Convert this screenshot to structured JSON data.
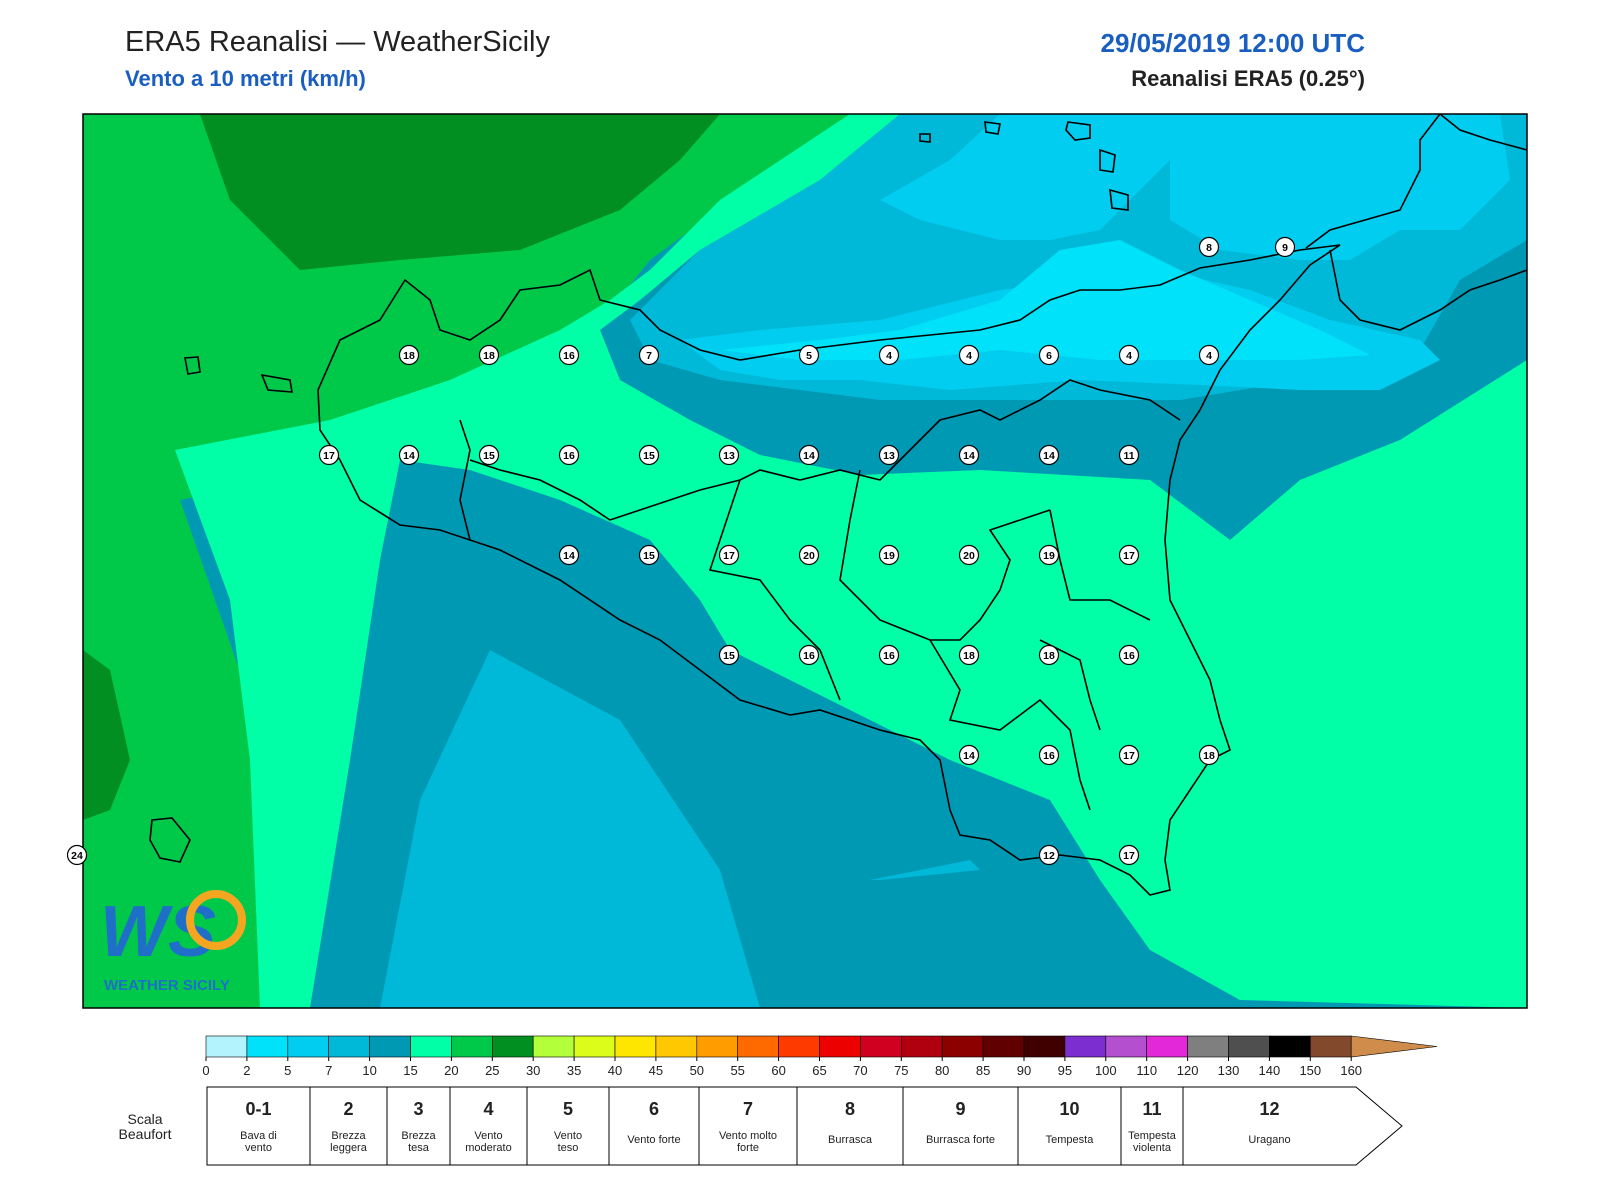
{
  "header": {
    "title": "ERA5 Reanalisi — WeatherSicily",
    "subtitle": "Vento a 10 metri (km/h)",
    "datetime": "29/05/2019 12:00 UTC",
    "model": "Reanalisi ERA5 (0.25°)"
  },
  "stations": [
    {
      "v": "8",
      "lon": 15.26,
      "lat": 38.27
    },
    {
      "v": "9",
      "lon": 15.45,
      "lat": 38.27
    },
    {
      "v": "18",
      "lon": 13.26,
      "lat": 38.0
    },
    {
      "v": "18",
      "lon": 13.46,
      "lat": 38.0
    },
    {
      "v": "16",
      "lon": 13.66,
      "lat": 38.0
    },
    {
      "v": "7",
      "lon": 13.86,
      "lat": 38.0
    },
    {
      "v": "5",
      "lon": 14.26,
      "lat": 38.0
    },
    {
      "v": "4",
      "lon": 14.46,
      "lat": 38.0
    },
    {
      "v": "4",
      "lon": 14.66,
      "lat": 38.0
    },
    {
      "v": "6",
      "lon": 14.86,
      "lat": 38.0
    },
    {
      "v": "4",
      "lon": 15.06,
      "lat": 38.0
    },
    {
      "v": "4",
      "lon": 15.26,
      "lat": 38.0
    },
    {
      "v": "17",
      "lon": 13.06,
      "lat": 37.75
    },
    {
      "v": "14",
      "lon": 13.26,
      "lat": 37.75
    },
    {
      "v": "15",
      "lon": 13.46,
      "lat": 37.75
    },
    {
      "v": "16",
      "lon": 13.66,
      "lat": 37.75
    },
    {
      "v": "15",
      "lon": 13.86,
      "lat": 37.75
    },
    {
      "v": "13",
      "lon": 14.06,
      "lat": 37.75
    },
    {
      "v": "14",
      "lon": 14.26,
      "lat": 37.75
    },
    {
      "v": "13",
      "lon": 14.46,
      "lat": 37.75
    },
    {
      "v": "14",
      "lon": 14.66,
      "lat": 37.75
    },
    {
      "v": "14",
      "lon": 14.86,
      "lat": 37.75
    },
    {
      "v": "11",
      "lon": 15.06,
      "lat": 37.75
    },
    {
      "v": "14",
      "lon": 13.66,
      "lat": 37.5
    },
    {
      "v": "15",
      "lon": 13.86,
      "lat": 37.5
    },
    {
      "v": "17",
      "lon": 14.06,
      "lat": 37.5
    },
    {
      "v": "20",
      "lon": 14.26,
      "lat": 37.5
    },
    {
      "v": "19",
      "lon": 14.46,
      "lat": 37.5
    },
    {
      "v": "20",
      "lon": 14.66,
      "lat": 37.5
    },
    {
      "v": "19",
      "lon": 14.86,
      "lat": 37.5
    },
    {
      "v": "17",
      "lon": 15.06,
      "lat": 37.5
    },
    {
      "v": "15",
      "lon": 14.06,
      "lat": 37.25
    },
    {
      "v": "16",
      "lon": 14.26,
      "lat": 37.25
    },
    {
      "v": "16",
      "lon": 14.46,
      "lat": 37.25
    },
    {
      "v": "18",
      "lon": 14.66,
      "lat": 37.25
    },
    {
      "v": "18",
      "lon": 14.86,
      "lat": 37.25
    },
    {
      "v": "16",
      "lon": 15.06,
      "lat": 37.25
    },
    {
      "v": "14",
      "lon": 14.66,
      "lat": 37.0
    },
    {
      "v": "16",
      "lon": 14.86,
      "lat": 37.0
    },
    {
      "v": "17",
      "lon": 15.06,
      "lat": 37.0
    },
    {
      "v": "18",
      "lon": 15.26,
      "lat": 37.0
    },
    {
      "v": "12",
      "lon": 14.86,
      "lat": 36.75
    },
    {
      "v": "17",
      "lon": 15.06,
      "lat": 36.75
    },
    {
      "v": "24",
      "lon": 12.43,
      "lat": 36.75
    }
  ],
  "colorbar": {
    "ticks": [
      "0",
      "2",
      "5",
      "7",
      "10",
      "15",
      "20",
      "25",
      "30",
      "35",
      "40",
      "45",
      "50",
      "55",
      "60",
      "65",
      "70",
      "75",
      "80",
      "85",
      "90",
      "95",
      "100",
      "110",
      "120",
      "130",
      "140",
      "150",
      "160"
    ],
    "colors": [
      "#b3f3fd",
      "#00e2f9",
      "#00cdef",
      "#00b9d8",
      "#0099b4",
      "#00ffa6",
      "#00c94a",
      "#008f20",
      "#b3ff3a",
      "#dcfc1a",
      "#ffe600",
      "#ffc800",
      "#ff9c00",
      "#ff6a00",
      "#ff3a00",
      "#ec0000",
      "#d00020",
      "#b00010",
      "#8c0000",
      "#600000",
      "#400000",
      "#7c2ed0",
      "#b450d0",
      "#e228d8",
      "#7f7f7f",
      "#4f4f4f",
      "#000000",
      "#82492c",
      "#d08c4a"
    ]
  },
  "beaufort": {
    "label": "Scala Beaufort",
    "entries": [
      {
        "n": "0-1",
        "d": "Bava di vento"
      },
      {
        "n": "2",
        "d": "Brezza leggera"
      },
      {
        "n": "3",
        "d": "Brezza tesa"
      },
      {
        "n": "4",
        "d": "Vento moderato"
      },
      {
        "n": "5",
        "d": "Vento teso"
      },
      {
        "n": "6",
        "d": "Vento forte"
      },
      {
        "n": "7",
        "d": "Vento molto forte"
      },
      {
        "n": "8",
        "d": "Burrasca"
      },
      {
        "n": "9",
        "d": "Burrasca forte"
      },
      {
        "n": "10",
        "d": "Tempesta"
      },
      {
        "n": "11",
        "d": "Tempesta violenta"
      },
      {
        "n": "12",
        "d": "Uragano"
      }
    ]
  },
  "logo": {
    "text": "WEATHER SICILY",
    "mark": "WS"
  }
}
